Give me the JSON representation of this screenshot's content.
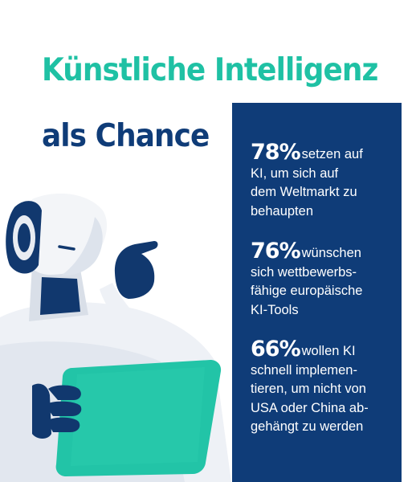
{
  "heading": {
    "title": "Künstliche Intelligenz",
    "subtitle": "als Chance"
  },
  "stats": [
    {
      "percent": "78%",
      "text": "setzen auf\nKI, um sich auf\ndem Weltmarkt zu\nbehaupten"
    },
    {
      "percent": "76%",
      "text": "wünschen\nsich wettbewerbs-\nfähige europäische\nKI-Tools"
    },
    {
      "percent": "66%",
      "text": "wollen KI\nschnell implemen-\ntieren, um nicht von\nUSA oder China ab-\ngehängt zu werden"
    }
  ],
  "colors": {
    "title": "#1fc1a4",
    "subtitle": "#0f3c78",
    "panel": "#0f3c78",
    "tablet": "#22c4a7",
    "robot_shell": "#f1f3f7",
    "robot_dark": "#11386e"
  },
  "illustration": {
    "subject": "robot-holding-tablet",
    "icons": [
      "robot-icon",
      "tablet-icon"
    ]
  }
}
